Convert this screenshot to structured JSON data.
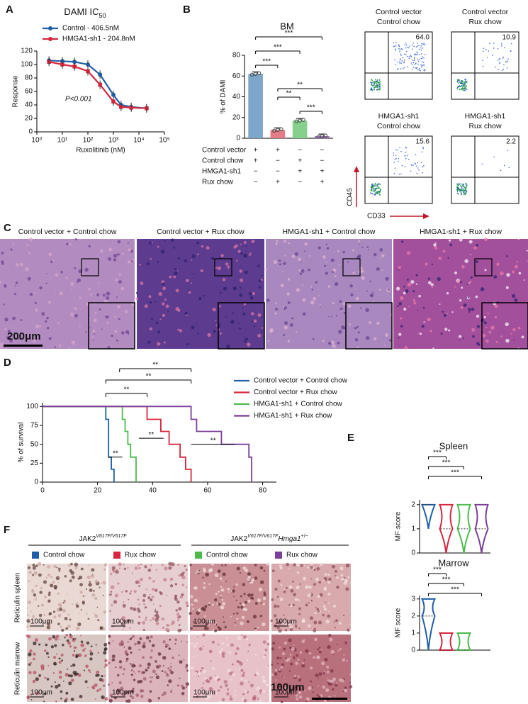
{
  "figure": {
    "panel_labels": [
      "A",
      "B",
      "C",
      "D",
      "E",
      "F"
    ]
  },
  "chart_data": [
    {
      "type": "line",
      "title": "DAMI IC",
      "title_sub": "50",
      "log_x": true,
      "x": [
        3,
        10,
        30,
        100,
        300,
        1000,
        2000,
        5000,
        20000
      ],
      "xlim": [
        1,
        100000
      ],
      "xticks": [
        {
          "value": 1,
          "label": "10⁰"
        },
        {
          "value": 10,
          "label": "10¹"
        },
        {
          "value": 100,
          "label": "10²"
        },
        {
          "value": 1000,
          "label": "10³"
        },
        {
          "value": 10000,
          "label": "10⁴"
        },
        {
          "value": 100000,
          "label": "10⁵"
        }
      ],
      "ylim": [
        0,
        120
      ],
      "yticks": [
        0,
        20,
        40,
        60,
        80,
        100,
        120
      ],
      "xlabel": "Ruxolitinib (nM)",
      "ylabel": "Response",
      "annotation": "P<0.001",
      "series": [
        {
          "name": "Control - 406.5nM",
          "color": "#1f5fa8",
          "values": [
            106,
            105,
            104,
            100,
            85,
            55,
            40,
            37,
            35
          ]
        },
        {
          "name": "HMGA1-sh1 - 204.8nM",
          "color": "#d7263d",
          "values": [
            104,
            100,
            97,
            90,
            70,
            45,
            37,
            36,
            35
          ]
        }
      ]
    },
    {
      "type": "bar",
      "title": "BM",
      "ylabel": "% of DAMI",
      "categories": [
        null,
        null,
        null,
        null
      ],
      "values": [
        62,
        8,
        17,
        2
      ],
      "colors": [
        "#7ea6c8",
        "#e47b87",
        "#86d08e",
        "#9b72b3"
      ],
      "ylim": [
        0,
        80
      ],
      "yticks": [
        0,
        20,
        40,
        60,
        80
      ],
      "annotations": [
        "***",
        "***",
        "***",
        "**",
        "**",
        "***"
      ]
    },
    {
      "type": "line",
      "ylabel": "% of survival",
      "xlim": [
        0,
        85
      ],
      "xticks": [
        0,
        20,
        40,
        60,
        80
      ],
      "ylim": [
        0,
        105
      ],
      "yticks": [
        0,
        25,
        50,
        75,
        100
      ],
      "annotations": [
        "**",
        "**",
        "**",
        "**",
        "**",
        "**"
      ],
      "series": [
        {
          "name": "Control vector + Control chow",
          "color": "#1f5fa8",
          "x": [
            0,
            23,
            23,
            24,
            24,
            25,
            25,
            26,
            26
          ],
          "values": [
            100,
            100,
            83,
            83,
            33,
            33,
            17,
            17,
            0
          ]
        },
        {
          "name": "Control vector + Rux chow",
          "color": "#d7263d",
          "x": [
            0,
            38,
            38,
            43,
            43,
            46,
            46,
            50,
            50,
            52,
            52,
            54,
            54
          ],
          "values": [
            100,
            100,
            83,
            83,
            67,
            67,
            50,
            50,
            33,
            33,
            17,
            17,
            0
          ]
        },
        {
          "name": "HMGA1-sh1 + Control chow",
          "color": "#4cbb4c",
          "x": [
            0,
            29,
            29,
            30,
            30,
            31,
            31,
            32,
            32,
            34,
            34
          ],
          "values": [
            100,
            100,
            83,
            83,
            67,
            67,
            50,
            50,
            33,
            33,
            0
          ]
        },
        {
          "name": "HMGA1-sh1 + Rux chow",
          "color": "#7b3f99",
          "x": [
            0,
            54,
            54,
            56,
            56,
            65,
            65,
            75,
            75,
            76,
            76
          ],
          "values": [
            100,
            100,
            83,
            83,
            67,
            67,
            50,
            50,
            33,
            33,
            0
          ]
        }
      ]
    },
    {
      "type": "violin",
      "title": "Spleen",
      "ylabel": "MF score",
      "categories": [
        null,
        null,
        null,
        null
      ],
      "mins": [
        1,
        0,
        0,
        0
      ],
      "medians": [
        2,
        1,
        1,
        1
      ],
      "maxes": [
        2,
        2,
        2,
        2
      ],
      "colors": [
        "#1f5fa8",
        "#d7263d",
        "#4cbb4c",
        "#7b3f99"
      ],
      "ylim": [
        0,
        2.2
      ],
      "yticks": [
        0,
        1,
        2
      ],
      "annotations": [
        "***",
        "***",
        "***"
      ]
    },
    {
      "type": "violin",
      "title": "Marrow",
      "ylabel": "MF score",
      "categories": [
        null,
        null,
        null,
        null
      ],
      "mins": [
        0,
        0,
        0,
        null
      ],
      "medians": [
        2,
        0,
        0,
        null
      ],
      "maxes": [
        3,
        1,
        1,
        null
      ],
      "colors": [
        "#1f5fa8",
        "#d7263d",
        "#4cbb4c",
        "#7b3f99"
      ],
      "ylim": [
        0,
        3.2
      ],
      "yticks": [
        0,
        1,
        2,
        3
      ],
      "annotations": [
        "***",
        "***",
        "***"
      ]
    }
  ],
  "panel_b": {
    "conditions": [
      {
        "label": "Control vector",
        "cells": [
          "+",
          "+",
          "−",
          "−"
        ]
      },
      {
        "label": "Control chow",
        "cells": [
          "+",
          "−",
          "+",
          "−"
        ]
      },
      {
        "label": "HMGA1-sh1",
        "cells": [
          "−",
          "−",
          "+",
          "+"
        ]
      },
      {
        "label": "Rux chow",
        "cells": [
          "−",
          "+",
          "−",
          "+"
        ]
      }
    ],
    "flow": [
      {
        "line1": "Control vector",
        "line2": "Control chow",
        "value": "64.0"
      },
      {
        "line1": "Control vector",
        "line2": "Rux chow",
        "value": "10.9"
      },
      {
        "line1": "HMGA1-sh1",
        "line2": "Control chow",
        "value": "15.6"
      },
      {
        "line1": "HMGA1-sh1",
        "line2": "Rux chow",
        "value": "2.2"
      }
    ],
    "y_axis": "CD45",
    "x_axis": "CD33"
  },
  "panel_c": {
    "captions": [
      "Control vector + Control chow",
      "Control vector + Rux chow",
      "HMGA1-sh1 + Control chow",
      "HMGA1-sh1 + Rux chow"
    ],
    "scale": "200μm"
  },
  "panel_f": {
    "group1": {
      "gene": "JAK2",
      "sup": "V617F/V617F"
    },
    "group2": {
      "gene": "JAK2",
      "sup": "V617F/V617F",
      "gene2": "Hmga1",
      "sup2": "+/−"
    },
    "legend": [
      {
        "name": "Control chow",
        "color": "#1f5fa8"
      },
      {
        "name": "Rux chow",
        "color": "#d7263d"
      },
      {
        "name": "Control chow",
        "color": "#4cbb4c"
      },
      {
        "name": "Rux chow",
        "color": "#7b3f99"
      }
    ],
    "rows": [
      "Reticulin spleen",
      "Reticulin marrow"
    ],
    "scale_small": "100μm",
    "scale": "100μm"
  }
}
